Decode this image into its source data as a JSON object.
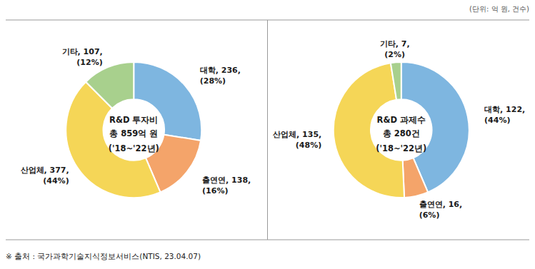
{
  "chart_data": [
    {
      "type": "donut",
      "title": "R&D 투자비",
      "subtitle": "총 859억 원",
      "annotations": [
        "('18~'22년)"
      ],
      "categories": [
        "대학",
        "출연연",
        "산업체",
        "기타"
      ],
      "values": [
        236,
        138,
        377,
        107
      ],
      "value_labels": [
        ", 236,",
        ", 138,",
        ", 377,",
        ", 107,"
      ],
      "percents": [
        28,
        16,
        44,
        12
      ],
      "percent_labels": [
        "(28%)",
        "(16%)",
        "(44%)",
        "(12%)"
      ],
      "colors": [
        "#7EB6E0",
        "#F4A46A",
        "#F5D657",
        "#A8D08D"
      ]
    },
    {
      "type": "donut",
      "title": "R&D 과제수",
      "subtitle": "총 280건",
      "annotations": [
        "('18~'22년)"
      ],
      "categories": [
        "대학",
        "출연연",
        "산업체",
        "기타"
      ],
      "values": [
        122,
        16,
        135,
        7
      ],
      "value_labels": [
        ", 122,",
        ", 16,",
        ", 135,",
        ", 7,"
      ],
      "percents": [
        44,
        6,
        48,
        2
      ],
      "percent_labels": [
        "(44%)",
        "(6%)",
        "(48%)",
        "(2%)"
      ],
      "colors": [
        "#7EB6E0",
        "#F4A46A",
        "#F5D657",
        "#A8D08D"
      ]
    }
  ],
  "annotations": [
    "(단위: 억 원, 건수)",
    "※ 출처 : 국가과학기술지식정보서비스(NTIS, 23.04.07)"
  ]
}
